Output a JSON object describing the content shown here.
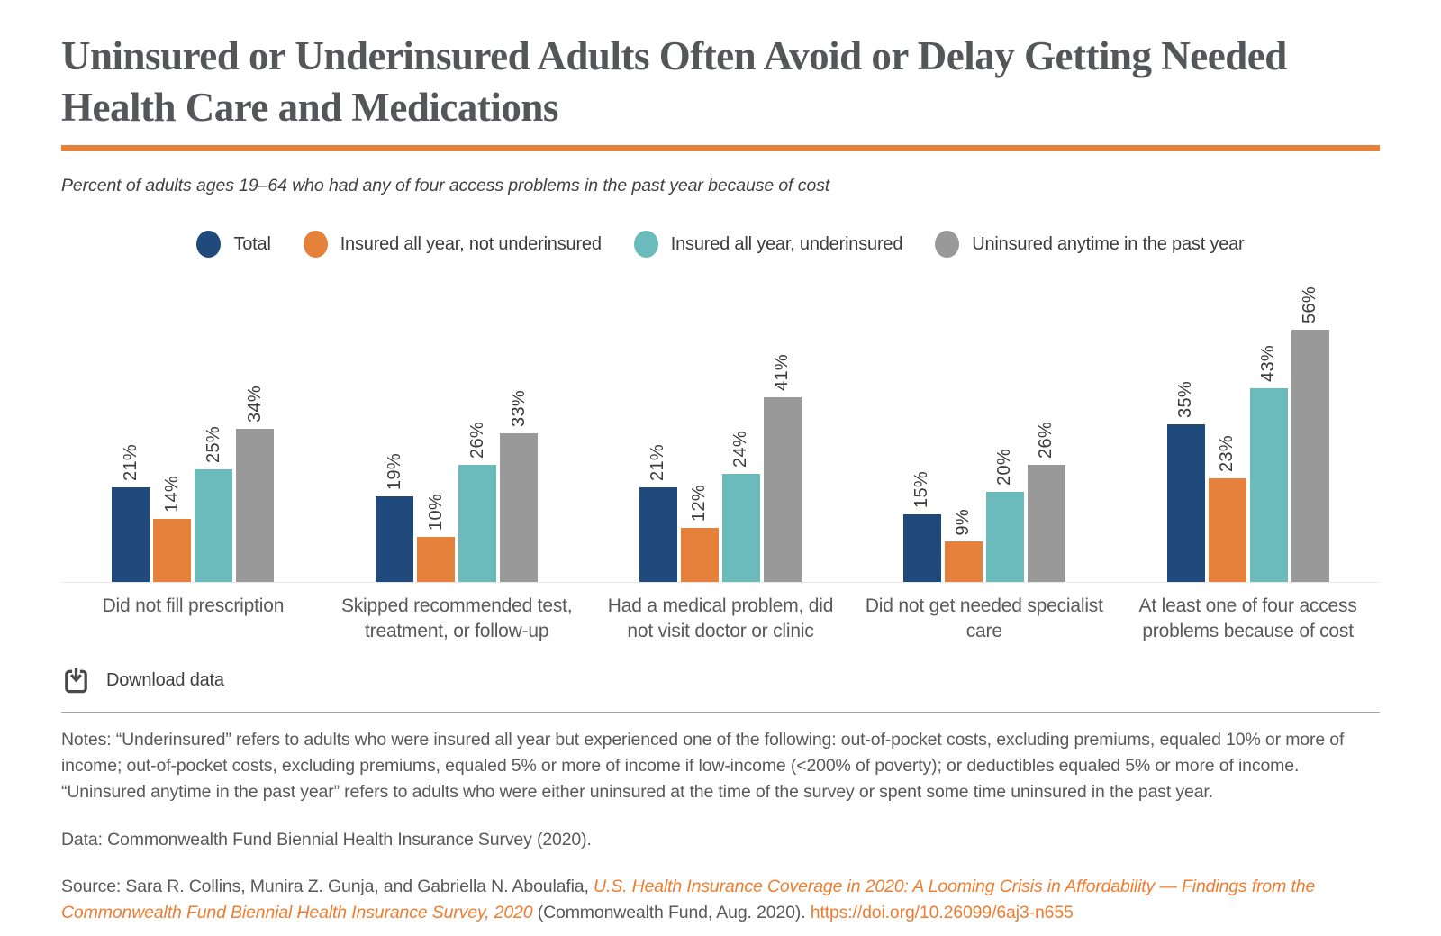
{
  "header": {
    "title": "Uninsured or Underinsured Adults Often Avoid or Delay Getting Needed Health Care and Medications",
    "subtitle": "Percent of adults ages 19–64 who had any of four access problems in the past year because of cost"
  },
  "colors": {
    "accent_orange": "#E5813B",
    "navy": "#204A7B",
    "orange": "#E5813B",
    "teal": "#6BBBBC",
    "gray": "#9A9999",
    "link_orange": "#ED7D31"
  },
  "chart_data": {
    "type": "bar",
    "unit": "%",
    "categories": [
      "Did not fill prescription",
      "Skipped recommended test, treatment, or follow-up",
      "Had a medical problem, did not visit doctor or clinic",
      "Did not get needed specialist care",
      "At least one of four access problems because of cost"
    ],
    "series": [
      {
        "name": "Total",
        "color": "#204A7B",
        "values": [
          21,
          19,
          21,
          15,
          35
        ]
      },
      {
        "name": "Insured all year, not underinsured",
        "color": "#E5813B",
        "values": [
          14,
          10,
          12,
          9,
          23
        ]
      },
      {
        "name": "Insured all year, underinsured",
        "color": "#6BBBBC",
        "values": [
          25,
          26,
          24,
          20,
          43
        ]
      },
      {
        "name": "Uninsured anytime in the past year",
        "color": "#9A9999",
        "values": [
          34,
          33,
          41,
          26,
          56
        ]
      }
    ],
    "value_labels": true,
    "label_rotation": -90,
    "ylim": [
      0,
      60
    ],
    "grid": false,
    "legend_position": "top"
  },
  "download": {
    "label": "Download data"
  },
  "footer": {
    "notes": "Notes: “Underinsured” refers to adults who were insured all year but experienced one of the following: out-of-pocket costs, excluding premiums, equaled 10% or more of income; out-of-pocket costs, excluding premiums, equaled 5% or more of income if low-income (<200% of poverty); or deductibles equaled 5% or more of income. “Uninsured anytime in the past year” refers to adults who were either uninsured at the time of the survey or spent some time uninsured in the past year.",
    "data_line": "Data: Commonwealth Fund Biennial Health Insurance Survey (2020).",
    "source_prefix": "Source: Sara R. Collins, Munira Z. Gunja, and Gabriella N. Aboulafia, ",
    "source_link_title": "U.S. Health Insurance Coverage in 2020: A Looming Crisis in Affordability — Findings from the Commonwealth Fund Biennial Health Insurance Survey, 2020",
    "source_middle": " (Commonwealth Fund, Aug. 2020). ",
    "source_doi": "https://doi.org/10.26099/6aj3-n655"
  }
}
